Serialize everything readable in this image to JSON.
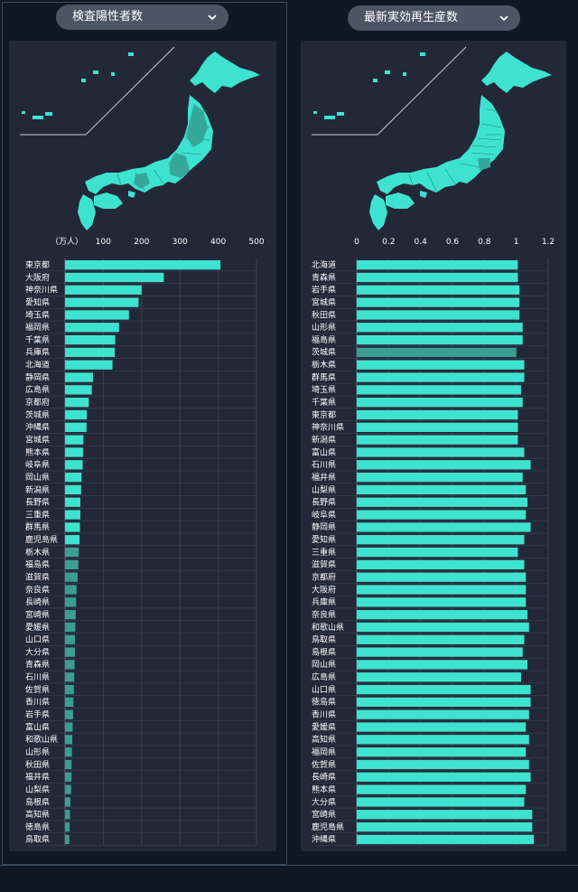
{
  "colors": {
    "accent": "#3de3cf",
    "muted": "#3a9e93",
    "panel": "#232838",
    "background": "#101826",
    "grid": "#3a4254"
  },
  "left_panel": {
    "dropdown_label": "検査陽性者数",
    "chart_data": {
      "type": "bar",
      "orientation": "horizontal",
      "unit_label": "（万人）",
      "xlim": [
        0,
        500
      ],
      "xticks": [
        100,
        200,
        300,
        400,
        500
      ],
      "grid": true,
      "categories": [
        "東京都",
        "大阪府",
        "神奈川県",
        "愛知県",
        "埼玉県",
        "福岡県",
        "千葉県",
        "兵庫県",
        "北海道",
        "静岡県",
        "広島県",
        "京都府",
        "茨城県",
        "沖縄県",
        "宮城県",
        "熊本県",
        "岐阜県",
        "岡山県",
        "新潟県",
        "長野県",
        "三重県",
        "群馬県",
        "鹿児島県",
        "栃木県",
        "福島県",
        "滋賀県",
        "奈良県",
        "長崎県",
        "宮崎県",
        "愛媛県",
        "山口県",
        "大分県",
        "青森県",
        "石川県",
        "佐賀県",
        "香川県",
        "岩手県",
        "富山県",
        "和歌山県",
        "山形県",
        "秋田県",
        "福井県",
        "山梨県",
        "島根県",
        "高知県",
        "徳島県",
        "鳥取県"
      ],
      "values": [
        406,
        258,
        200,
        192,
        167,
        141,
        131,
        130,
        124,
        73,
        70,
        62,
        57,
        56,
        48,
        47,
        46,
        43,
        42,
        40,
        40,
        39,
        38,
        36,
        35,
        33,
        30,
        29,
        28,
        27,
        26,
        26,
        25,
        24,
        23,
        22,
        21,
        20,
        19,
        18,
        17,
        17,
        16,
        14,
        13,
        12,
        11
      ],
      "muted_categories": [
        "栃木県",
        "福島県",
        "滋賀県",
        "奈良県",
        "長崎県",
        "宮崎県",
        "愛媛県",
        "山口県",
        "大分県",
        "青森県",
        "石川県",
        "佐賀県",
        "香川県",
        "岩手県",
        "富山県",
        "和歌山県",
        "山形県",
        "秋田県",
        "福井県",
        "山梨県",
        "島根県",
        "高知県",
        "徳島県",
        "鳥取県"
      ]
    }
  },
  "right_panel": {
    "dropdown_label": "最新実効再生産数",
    "chart_data": {
      "type": "bar",
      "orientation": "horizontal",
      "xlim": [
        0,
        1.2
      ],
      "xticks": [
        "0",
        "0.2",
        "0.4",
        "0.6",
        "0.8",
        "1",
        "1.2"
      ],
      "grid": true,
      "categories": [
        "北海道",
        "青森県",
        "岩手県",
        "宮城県",
        "秋田県",
        "山形県",
        "福島県",
        "茨城県",
        "栃木県",
        "群馬県",
        "埼玉県",
        "千葉県",
        "東京都",
        "神奈川県",
        "新潟県",
        "富山県",
        "石川県",
        "福井県",
        "山梨県",
        "長野県",
        "岐阜県",
        "静岡県",
        "愛知県",
        "三重県",
        "滋賀県",
        "京都府",
        "大阪府",
        "兵庫県",
        "奈良県",
        "和歌山県",
        "鳥取県",
        "島根県",
        "岡山県",
        "広島県",
        "山口県",
        "徳島県",
        "香川県",
        "愛媛県",
        "高知県",
        "福岡県",
        "佐賀県",
        "長崎県",
        "熊本県",
        "大分県",
        "宮崎県",
        "鹿児島県",
        "沖縄県"
      ],
      "values": [
        1.01,
        1.01,
        1.02,
        1.02,
        1.02,
        1.04,
        1.04,
        1.0,
        1.05,
        1.05,
        1.03,
        1.04,
        1.01,
        1.01,
        1.01,
        1.05,
        1.09,
        1.04,
        1.06,
        1.07,
        1.06,
        1.09,
        1.05,
        1.01,
        1.05,
        1.06,
        1.06,
        1.06,
        1.07,
        1.08,
        1.05,
        1.04,
        1.07,
        1.03,
        1.09,
        1.09,
        1.08,
        1.06,
        1.08,
        1.06,
        1.08,
        1.09,
        1.06,
        1.05,
        1.1,
        1.1,
        1.11
      ],
      "muted_categories": [
        "茨城県"
      ]
    }
  }
}
